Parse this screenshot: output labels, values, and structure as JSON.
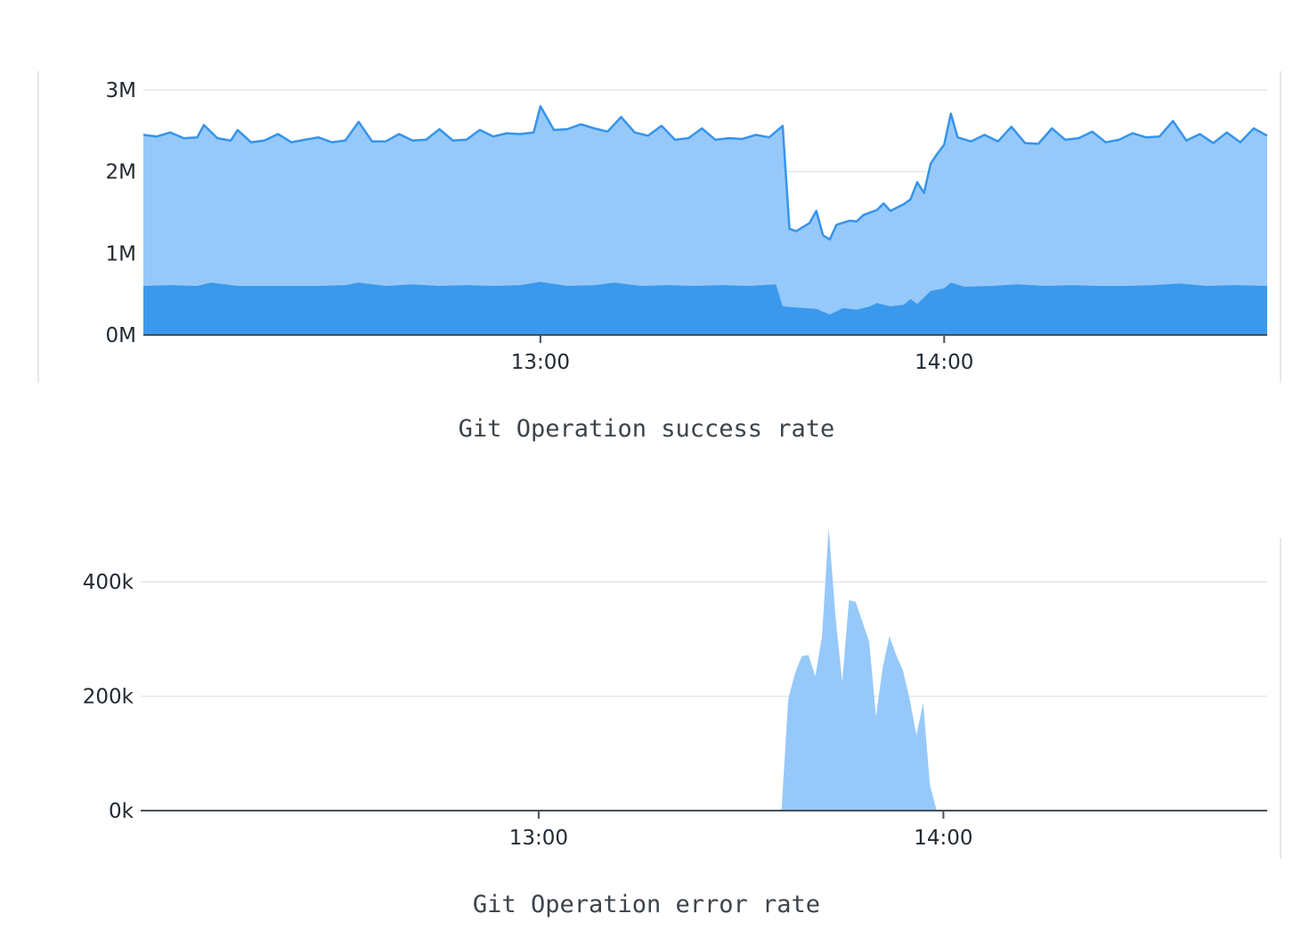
{
  "colors": {
    "area_light": "#96c9fa",
    "area_dark": "#3a99ec",
    "line": "#3594ec",
    "grid": "#e3e6ea",
    "axis": "#47505c",
    "frame": "#e6e8ec"
  },
  "chart_data": [
    {
      "type": "area",
      "caption": "Git Operation success rate",
      "x_ticks": [
        "13:00",
        "14:00"
      ],
      "y_ticks": [
        "0M",
        "1M",
        "2M",
        "3M"
      ],
      "ylim": [
        0,
        3
      ],
      "y_unit": "M",
      "x_domain": [
        "12:01",
        "14:48"
      ],
      "stacked": true,
      "grid": true,
      "series": [
        {
          "role": "total",
          "points": [
            [
              "12:01",
              2.45
            ],
            [
              "12:03",
              2.43
            ],
            [
              "12:05",
              2.48
            ],
            [
              "12:07",
              2.41
            ],
            [
              "12:09",
              2.42
            ],
            [
              "12:10",
              2.57
            ],
            [
              "12:12",
              2.41
            ],
            [
              "12:14",
              2.38
            ],
            [
              "12:15",
              2.51
            ],
            [
              "12:17",
              2.36
            ],
            [
              "12:19",
              2.38
            ],
            [
              "12:21",
              2.46
            ],
            [
              "12:23",
              2.36
            ],
            [
              "12:25",
              2.39
            ],
            [
              "12:27",
              2.42
            ],
            [
              "12:29",
              2.36
            ],
            [
              "12:31",
              2.38
            ],
            [
              "12:33",
              2.61
            ],
            [
              "12:35",
              2.37
            ],
            [
              "12:37",
              2.37
            ],
            [
              "12:39",
              2.46
            ],
            [
              "12:41",
              2.38
            ],
            [
              "12:43",
              2.39
            ],
            [
              "12:45",
              2.52
            ],
            [
              "12:47",
              2.38
            ],
            [
              "12:49",
              2.39
            ],
            [
              "12:51",
              2.51
            ],
            [
              "12:53",
              2.43
            ],
            [
              "12:55",
              2.47
            ],
            [
              "12:57",
              2.46
            ],
            [
              "12:59",
              2.48
            ],
            [
              "13:00",
              2.8
            ],
            [
              "13:02",
              2.51
            ],
            [
              "13:04",
              2.52
            ],
            [
              "13:06",
              2.58
            ],
            [
              "13:08",
              2.53
            ],
            [
              "13:10",
              2.49
            ],
            [
              "13:12",
              2.67
            ],
            [
              "13:14",
              2.48
            ],
            [
              "13:16",
              2.44
            ],
            [
              "13:18",
              2.56
            ],
            [
              "13:20",
              2.39
            ],
            [
              "13:22",
              2.41
            ],
            [
              "13:24",
              2.53
            ],
            [
              "13:26",
              2.39
            ],
            [
              "13:28",
              2.41
            ],
            [
              "13:30",
              2.4
            ],
            [
              "13:32",
              2.45
            ],
            [
              "13:34",
              2.42
            ],
            [
              "13:36",
              2.56
            ],
            [
              "13:37",
              1.3
            ],
            [
              "13:38",
              1.27
            ],
            [
              "13:40",
              1.37
            ],
            [
              "13:41",
              1.52
            ],
            [
              "13:42",
              1.22
            ],
            [
              "13:43",
              1.17
            ],
            [
              "13:44",
              1.35
            ],
            [
              "13:46",
              1.4
            ],
            [
              "13:47",
              1.39
            ],
            [
              "13:48",
              1.47
            ],
            [
              "13:50",
              1.53
            ],
            [
              "13:51",
              1.61
            ],
            [
              "13:52",
              1.52
            ],
            [
              "13:54",
              1.6
            ],
            [
              "13:55",
              1.66
            ],
            [
              "13:56",
              1.87
            ],
            [
              "13:57",
              1.74
            ],
            [
              "13:58",
              2.1
            ],
            [
              "13:59",
              2.22
            ],
            [
              "14:00",
              2.33
            ],
            [
              "14:01",
              2.71
            ],
            [
              "14:02",
              2.42
            ],
            [
              "14:04",
              2.37
            ],
            [
              "14:06",
              2.45
            ],
            [
              "14:08",
              2.37
            ],
            [
              "14:10",
              2.55
            ],
            [
              "14:12",
              2.35
            ],
            [
              "14:14",
              2.34
            ],
            [
              "14:16",
              2.53
            ],
            [
              "14:18",
              2.39
            ],
            [
              "14:20",
              2.41
            ],
            [
              "14:22",
              2.49
            ],
            [
              "14:24",
              2.36
            ],
            [
              "14:26",
              2.39
            ],
            [
              "14:28",
              2.47
            ],
            [
              "14:30",
              2.42
            ],
            [
              "14:32",
              2.43
            ],
            [
              "14:34",
              2.62
            ],
            [
              "14:36",
              2.38
            ],
            [
              "14:38",
              2.46
            ],
            [
              "14:40",
              2.35
            ],
            [
              "14:42",
              2.48
            ],
            [
              "14:44",
              2.36
            ],
            [
              "14:46",
              2.53
            ],
            [
              "14:48",
              2.44
            ]
          ]
        },
        {
          "role": "lower",
          "points": [
            [
              "12:01",
              0.6
            ],
            [
              "12:05",
              0.61
            ],
            [
              "12:09",
              0.6
            ],
            [
              "12:11",
              0.64
            ],
            [
              "12:15",
              0.6
            ],
            [
              "12:19",
              0.6
            ],
            [
              "12:23",
              0.6
            ],
            [
              "12:27",
              0.6
            ],
            [
              "12:31",
              0.61
            ],
            [
              "12:33",
              0.64
            ],
            [
              "12:37",
              0.6
            ],
            [
              "12:41",
              0.62
            ],
            [
              "12:45",
              0.6
            ],
            [
              "12:49",
              0.61
            ],
            [
              "12:53",
              0.6
            ],
            [
              "12:57",
              0.61
            ],
            [
              "13:00",
              0.65
            ],
            [
              "13:04",
              0.6
            ],
            [
              "13:08",
              0.61
            ],
            [
              "13:11",
              0.64
            ],
            [
              "13:15",
              0.6
            ],
            [
              "13:19",
              0.61
            ],
            [
              "13:23",
              0.6
            ],
            [
              "13:27",
              0.61
            ],
            [
              "13:31",
              0.6
            ],
            [
              "13:35",
              0.62
            ],
            [
              "13:36",
              0.35
            ],
            [
              "13:39",
              0.33
            ],
            [
              "13:41",
              0.32
            ],
            [
              "13:43",
              0.25
            ],
            [
              "13:45",
              0.33
            ],
            [
              "13:47",
              0.31
            ],
            [
              "13:49",
              0.35
            ],
            [
              "13:50",
              0.39
            ],
            [
              "13:52",
              0.35
            ],
            [
              "13:54",
              0.37
            ],
            [
              "13:55",
              0.44
            ],
            [
              "13:56",
              0.38
            ],
            [
              "13:58",
              0.54
            ],
            [
              "14:00",
              0.57
            ],
            [
              "14:01",
              0.64
            ],
            [
              "14:03",
              0.59
            ],
            [
              "14:07",
              0.6
            ],
            [
              "14:11",
              0.62
            ],
            [
              "14:15",
              0.6
            ],
            [
              "14:19",
              0.61
            ],
            [
              "14:23",
              0.6
            ],
            [
              "14:27",
              0.6
            ],
            [
              "14:31",
              0.61
            ],
            [
              "14:35",
              0.63
            ],
            [
              "14:39",
              0.6
            ],
            [
              "14:43",
              0.61
            ],
            [
              "14:48",
              0.6
            ]
          ]
        }
      ]
    },
    {
      "type": "area",
      "caption": "Git Operation error rate",
      "x_ticks": [
        "13:00",
        "14:00"
      ],
      "y_ticks": [
        "0k",
        "200k",
        "400k"
      ],
      "ylim": [
        0,
        500
      ],
      "y_unit": "k",
      "x_domain": [
        "12:01",
        "14:48"
      ],
      "grid": true,
      "series": [
        {
          "role": "errors",
          "points": [
            [
              "12:01",
              0
            ],
            [
              "13:36",
              0
            ],
            [
              "13:37",
              195
            ],
            [
              "13:38",
              240
            ],
            [
              "13:39",
              270
            ],
            [
              "13:40",
              272
            ],
            [
              "13:41",
              235
            ],
            [
              "13:42",
              305
            ],
            [
              "13:43",
              495
            ],
            [
              "13:44",
              340
            ],
            [
              "13:45",
              225
            ],
            [
              "13:46",
              368
            ],
            [
              "13:47",
              365
            ],
            [
              "13:48",
              330
            ],
            [
              "13:49",
              295
            ],
            [
              "13:50",
              165
            ],
            [
              "13:51",
              250
            ],
            [
              "13:52",
              305
            ],
            [
              "13:53",
              272
            ],
            [
              "13:54",
              245
            ],
            [
              "13:55",
              195
            ],
            [
              "13:56",
              132
            ],
            [
              "13:57",
              188
            ],
            [
              "13:58",
              45
            ],
            [
              "13:59",
              0
            ],
            [
              "14:48",
              0
            ]
          ]
        }
      ]
    }
  ]
}
